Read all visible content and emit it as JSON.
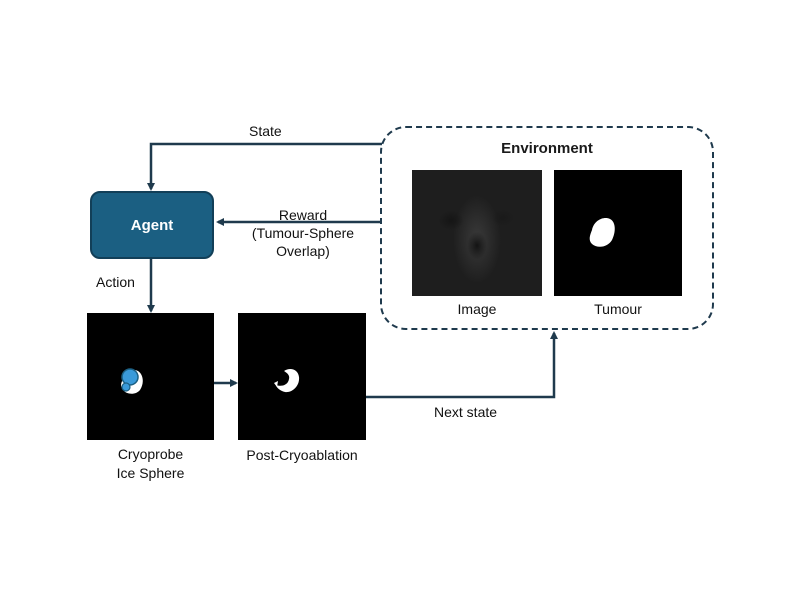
{
  "environment": {
    "title": "Environment",
    "image_label": "Image",
    "tumour_label": "Tumour"
  },
  "agent": {
    "label": "Agent"
  },
  "edges": {
    "state": "State",
    "reward_line1": "Reward",
    "reward_line2": "(Tumour-Sphere",
    "reward_line3": "Overlap)",
    "action": "Action",
    "next_state": "Next state"
  },
  "panels": {
    "cryoprobe_line1": "Cryoprobe",
    "cryoprobe_line2": "Ice Sphere",
    "post": "Post-Cryoablation"
  },
  "colors": {
    "agent_fill": "#1b5f82",
    "arrow": "#1f3a4d",
    "ice_sphere": "#3a9ad9"
  }
}
